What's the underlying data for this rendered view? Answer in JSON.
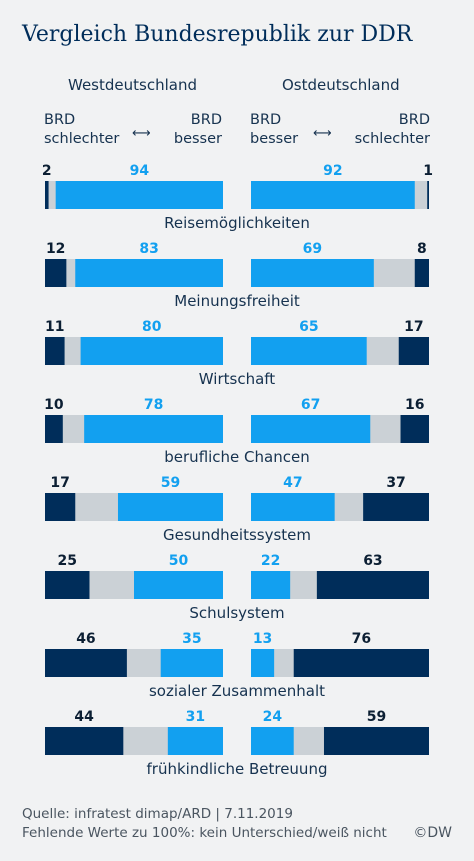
{
  "title": "Vergleich Bundesrepublik zur DDR",
  "columns": {
    "left_title": "Westdeutschland",
    "right_title": "Ostdeutschland",
    "left_axis_left": [
      "BRD",
      "schlechter"
    ],
    "left_axis_right": [
      "BRD",
      "besser"
    ],
    "right_axis_left": [
      "BRD",
      "besser"
    ],
    "right_axis_right": [
      "BRD",
      "schlechter"
    ],
    "arrow_glyph": "⟷"
  },
  "colors": {
    "dark": "#002d5a",
    "light": "#12a0f0",
    "gray": "#cbd1d6",
    "light_text": "#12a0f0",
    "dark_text": "#0c1f33"
  },
  "chart_data": {
    "type": "bar",
    "orientation": "horizontal-stacked",
    "categories": [
      "Reisemöglichkeiten",
      "Meinungsfreiheit",
      "Wirtschaft",
      "berufliche Chancen",
      "Gesundheitssystem",
      "Schulsystem",
      "sozialer Zusammenhalt",
      "frühkindliche Betreuung"
    ],
    "panels": [
      {
        "name": "Westdeutschland",
        "series": [
          {
            "name": "BRD schlechter",
            "values": [
              2,
              12,
              11,
              10,
              17,
              25,
              46,
              44
            ]
          },
          {
            "name": "BRD besser",
            "values": [
              94,
              83,
              80,
              78,
              59,
              50,
              35,
              31
            ]
          }
        ]
      },
      {
        "name": "Ostdeutschland",
        "series": [
          {
            "name": "BRD besser",
            "values": [
              92,
              69,
              65,
              67,
              47,
              22,
              13,
              24
            ]
          },
          {
            "name": "BRD schlechter",
            "values": [
              1,
              8,
              17,
              16,
              37,
              63,
              76,
              59
            ]
          }
        ]
      }
    ],
    "xlim": [
      0,
      100
    ]
  },
  "footer": {
    "source": "Quelle: infratest dimap/ARD | 7.11.2019",
    "note": "Fehlende Werte zu 100%: kein Unterschied/weiß nicht",
    "logo": "©DW"
  }
}
